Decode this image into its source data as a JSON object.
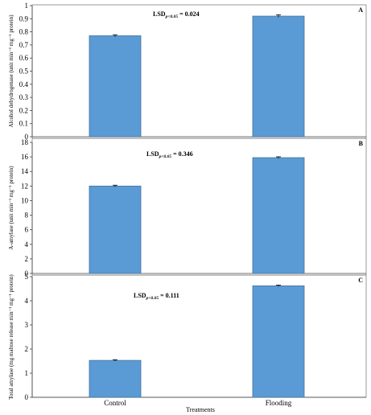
{
  "chart_data": [
    {
      "type": "bar",
      "panel": "A",
      "categories": [
        "Control",
        "Flooding"
      ],
      "values": [
        0.77,
        0.92
      ],
      "errors": [
        0.008,
        0.01
      ],
      "ylim": [
        0,
        1
      ],
      "yticks": [
        "0",
        "0.1",
        "0.2",
        "0.3",
        "0.4",
        "0.5",
        "0.6",
        "0.7",
        "0.8",
        "0.9",
        "1"
      ],
      "ytick_values": [
        0,
        0.1,
        0.2,
        0.3,
        0.4,
        0.5,
        0.6,
        0.7,
        0.8,
        0.9,
        1
      ],
      "ylabel": "Alcohol dehydrogenase (unit min⁻¹ mg⁻¹ protein)",
      "annotation": {
        "prefix": "LSD",
        "sub": "p<0.05",
        "value": "= 0.024"
      },
      "color": "#5b9bd5"
    },
    {
      "type": "bar",
      "panel": "B",
      "categories": [
        "Control",
        "Flooding"
      ],
      "values": [
        12.0,
        15.9
      ],
      "errors": [
        0.12,
        0.12
      ],
      "ylim": [
        0,
        18
      ],
      "yticks": [
        "0",
        "2",
        "4",
        "6",
        "8",
        "10",
        "12",
        "14",
        "16",
        "18"
      ],
      "ytick_values": [
        0,
        2,
        4,
        6,
        8,
        10,
        12,
        14,
        16,
        18
      ],
      "ylabel": "A-amylase (unit min⁻¹ mg⁻¹ protein)",
      "annotation": {
        "prefix": "LSD",
        "sub": "p<0.05",
        "value": "= 0.346"
      },
      "color": "#5b9bd5"
    },
    {
      "type": "bar",
      "panel": "C",
      "categories": [
        "Control",
        "Flooding"
      ],
      "values": [
        1.53,
        4.62
      ],
      "errors": [
        0.03,
        0.03
      ],
      "ylim": [
        0,
        5
      ],
      "yticks": [
        "0",
        "1",
        "2",
        "3",
        "4",
        "5"
      ],
      "ytick_values": [
        0,
        1,
        2,
        3,
        4,
        5
      ],
      "ylabel": "Total amylase (mg maltose release min⁻¹ mg⁻¹ protein)",
      "annotation": {
        "prefix": "LSD",
        "sub": "p<0.05",
        "value": "= 0.111"
      },
      "color": "#5b9bd5",
      "xlabel": "Treatments"
    }
  ]
}
